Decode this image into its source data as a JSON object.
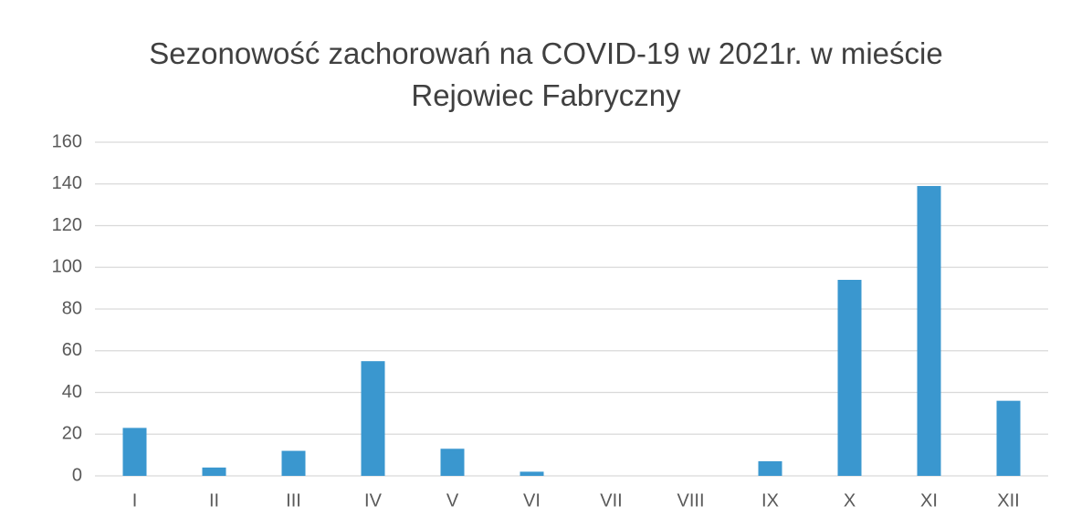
{
  "chart_data": {
    "type": "bar",
    "title": "Sezonowość zachorowań na COVID-19 w 2021r. w mieście Rejowiec Fabryczny",
    "categories": [
      "I",
      "II",
      "III",
      "IV",
      "V",
      "VI",
      "VII",
      "VIII",
      "IX",
      "X",
      "XI",
      "XII"
    ],
    "values": [
      23,
      4,
      12,
      55,
      13,
      2,
      0,
      0,
      7,
      94,
      139,
      36
    ],
    "color": "#3a97cf",
    "ylim": [
      0,
      160
    ],
    "yticks": [
      0,
      20,
      40,
      60,
      80,
      100,
      120,
      140,
      160
    ],
    "grid": true
  }
}
